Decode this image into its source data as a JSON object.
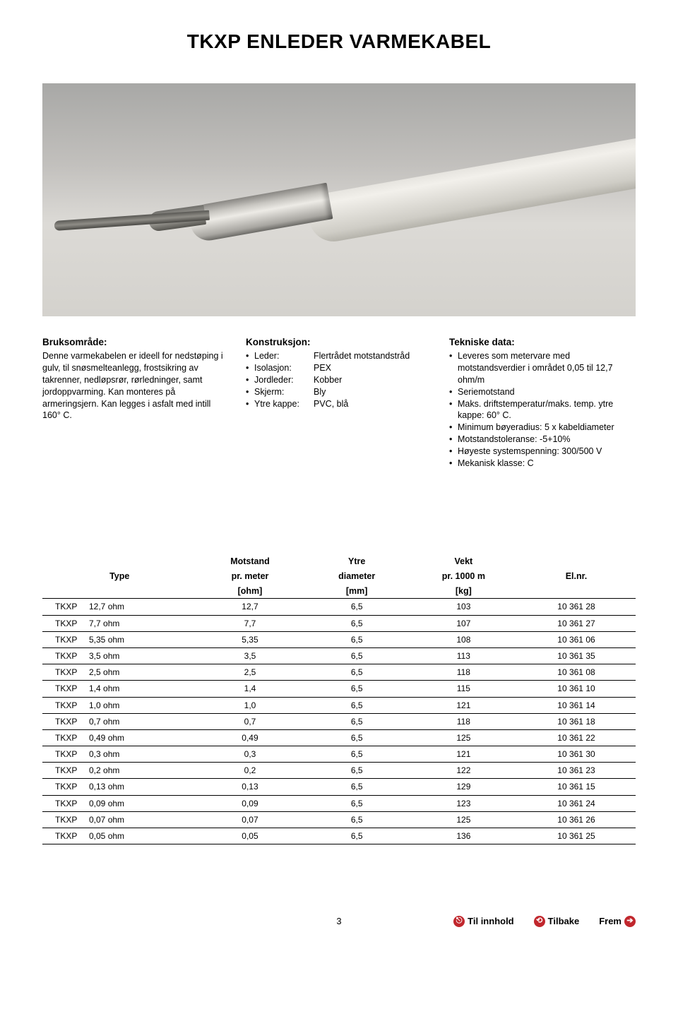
{
  "title": "TKXP ENLEDER VARMEKABEL",
  "colors": {
    "accent": "#c1272d",
    "text": "#000000",
    "border": "#000000",
    "hero_bg_top": "#a8a8a6",
    "hero_bg_bottom": "#d4d2cd"
  },
  "usage": {
    "heading": "Bruksområde:",
    "body": "Denne varmekabelen er ideell for nedstøping i gulv, til snøsmelteanlegg, frostsikring av takrenner, nedløpsrør, rørledninger, samt jordoppvarming. Kan monteres på armeringsjern. Kan legges i asfalt med intill 160° C."
  },
  "construction": {
    "heading": "Konstruksjon:",
    "rows": [
      {
        "k": "Leder:",
        "v": "Flertrådet motstandstråd"
      },
      {
        "k": "Isolasjon:",
        "v": "PEX"
      },
      {
        "k": "Jordleder:",
        "v": "Kobber"
      },
      {
        "k": "Skjerm:",
        "v": "Bly"
      },
      {
        "k": "Ytre kappe:",
        "v": "PVC, blå"
      }
    ]
  },
  "technical": {
    "heading": "Tekniske data:",
    "items": [
      "Leveres som metervare med motstandsverdier i området 0,05 til 12,7 ohm/m",
      "Seriemotstand",
      "Maks. driftstemperatur/maks. temp. ytre kappe: 60° C.",
      "Minimum bøyeradius: 5 x kabeldiameter",
      "Motstandstoleranse: -5+10%",
      "Høyeste systemspenning: 300/500 V",
      "Mekanisk klasse: C"
    ]
  },
  "table": {
    "headers": {
      "type": {
        "l1": "",
        "l2": "Type",
        "l3": ""
      },
      "motstand": {
        "l1": "Motstand",
        "l2": "pr. meter",
        "l3": "[ohm]"
      },
      "ytre": {
        "l1": "Ytre",
        "l2": "diameter",
        "l3": "[mm]"
      },
      "vekt": {
        "l1": "Vekt",
        "l2": "pr. 1000 m",
        "l3": "[kg]"
      },
      "elnr": {
        "l1": "",
        "l2": "El.nr.",
        "l3": ""
      }
    },
    "col_widths": [
      "26%",
      "18%",
      "18%",
      "18%",
      "20%"
    ],
    "rows": [
      {
        "type_prefix": "TKXP",
        "type_val": "12,7 ohm",
        "motstand": "12,7",
        "ytre": "6,5",
        "vekt": "103",
        "elnr": "10 361 28"
      },
      {
        "type_prefix": "TKXP",
        "type_val": "7,7 ohm",
        "motstand": "7,7",
        "ytre": "6,5",
        "vekt": "107",
        "elnr": "10 361 27"
      },
      {
        "type_prefix": "TKXP",
        "type_val": "5,35 ohm",
        "motstand": "5,35",
        "ytre": "6,5",
        "vekt": "108",
        "elnr": "10 361 06"
      },
      {
        "type_prefix": "TKXP",
        "type_val": "3,5 ohm",
        "motstand": "3,5",
        "ytre": "6,5",
        "vekt": "113",
        "elnr": "10 361 35"
      },
      {
        "type_prefix": "TKXP",
        "type_val": "2,5 ohm",
        "motstand": "2,5",
        "ytre": "6,5",
        "vekt": "118",
        "elnr": "10 361 08"
      },
      {
        "type_prefix": "TKXP",
        "type_val": "1,4 ohm",
        "motstand": "1,4",
        "ytre": "6,5",
        "vekt": "115",
        "elnr": "10 361 10"
      },
      {
        "type_prefix": "TKXP",
        "type_val": "1,0 ohm",
        "motstand": "1,0",
        "ytre": "6,5",
        "vekt": "121",
        "elnr": "10 361 14"
      },
      {
        "type_prefix": "TKXP",
        "type_val": "0,7 ohm",
        "motstand": "0,7",
        "ytre": "6,5",
        "vekt": "118",
        "elnr": "10 361 18"
      },
      {
        "type_prefix": "TKXP",
        "type_val": "0,49 ohm",
        "motstand": "0,49",
        "ytre": "6,5",
        "vekt": "125",
        "elnr": "10 361 22"
      },
      {
        "type_prefix": "TKXP",
        "type_val": "0,3 ohm",
        "motstand": "0,3",
        "ytre": "6,5",
        "vekt": "121",
        "elnr": "10 361 30"
      },
      {
        "type_prefix": "TKXP",
        "type_val": "0,2 ohm",
        "motstand": "0,2",
        "ytre": "6,5",
        "vekt": "122",
        "elnr": "10 361 23"
      },
      {
        "type_prefix": "TKXP",
        "type_val": "0,13 ohm",
        "motstand": "0,13",
        "ytre": "6,5",
        "vekt": "129",
        "elnr": "10 361 15"
      },
      {
        "type_prefix": "TKXP",
        "type_val": "0,09 ohm",
        "motstand": "0,09",
        "ytre": "6,5",
        "vekt": "123",
        "elnr": "10 361 24"
      },
      {
        "type_prefix": "TKXP",
        "type_val": "0,07 ohm",
        "motstand": "0,07",
        "ytre": "6,5",
        "vekt": "125",
        "elnr": "10 361 26"
      },
      {
        "type_prefix": "TKXP",
        "type_val": "0,05 ohm",
        "motstand": "0,05",
        "ytre": "6,5",
        "vekt": "136",
        "elnr": "10 361 25"
      }
    ]
  },
  "footer": {
    "page": "3",
    "links": {
      "toc": {
        "label": "Til innhold",
        "icon": "⎋"
      },
      "back": {
        "label": "Tilbake",
        "icon": "⟲"
      },
      "fwd": {
        "label": "Frem",
        "icon": "➔"
      }
    }
  }
}
